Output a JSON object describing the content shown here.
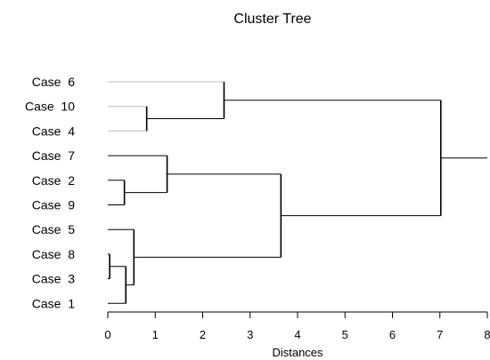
{
  "chart_data": {
    "type": "dendrogram",
    "title": "Cluster Tree",
    "xlabel": "Distances",
    "ylabel": "",
    "xlim": [
      0,
      8
    ],
    "x_ticks": [
      "0",
      "1",
      "2",
      "3",
      "4",
      "5",
      "6",
      "7",
      "8"
    ],
    "grid": false,
    "leaves": [
      {
        "id": 6,
        "label": "Case  6"
      },
      {
        "id": 10,
        "label": "Case  10"
      },
      {
        "id": 4,
        "label": "Case  4"
      },
      {
        "id": 7,
        "label": "Case  7"
      },
      {
        "id": 2,
        "label": "Case  2"
      },
      {
        "id": 9,
        "label": "Case  9"
      },
      {
        "id": 5,
        "label": "Case  5"
      },
      {
        "id": 8,
        "label": "Case  8"
      },
      {
        "id": 3,
        "label": "Case  3"
      },
      {
        "id": 1,
        "label": "Case  1"
      }
    ],
    "merges": [
      {
        "members": [
          8,
          3
        ],
        "distance": 0.04
      },
      {
        "members": [
          2,
          9
        ],
        "distance": 0.35
      },
      {
        "members": [
          8,
          3,
          1
        ],
        "distance": 0.38
      },
      {
        "members": [
          5,
          8,
          3,
          1
        ],
        "distance": 0.55
      },
      {
        "members": [
          10,
          4
        ],
        "distance": 0.82
      },
      {
        "members": [
          7,
          2,
          9
        ],
        "distance": 1.25
      },
      {
        "members": [
          6,
          10,
          4
        ],
        "distance": 2.45
      },
      {
        "members": [
          7,
          2,
          9,
          5,
          8,
          3,
          1
        ],
        "distance": 3.65
      },
      {
        "members": [
          6,
          10,
          4,
          7,
          2,
          9,
          5,
          8,
          3,
          1
        ],
        "distance": 7.02
      }
    ],
    "root_tail_to": 8,
    "colors": {
      "line": "#000000",
      "light_line": "#bdbdbd",
      "text": "#000000",
      "background": "#ffffff"
    }
  }
}
